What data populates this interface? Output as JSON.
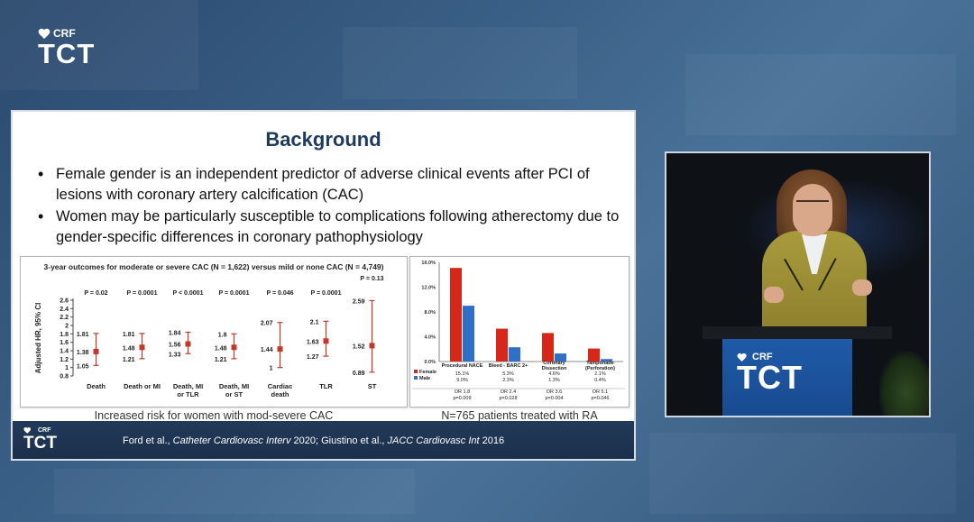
{
  "event_logo": {
    "crf": "CRF",
    "tct": "TCT"
  },
  "slide": {
    "title": "Background",
    "bullets": [
      "Female gender is an independent predictor of adverse clinical events after PCI of lesions with coronary artery calcification (CAC)",
      "Women may be particularly susceptible to complications following atherectomy due to gender-specific differences in coronary pathophysiology"
    ],
    "left_caption": "Increased risk for women with mod-severe CAC",
    "right_caption": "N=765 patients treated with RA",
    "footer": {
      "crf": "CRF",
      "tct": "TCT",
      "cite_a": "Ford et al., ",
      "journal_a": "Catheter Cardiovasc Interv",
      "year_a": " 2020; Giustino et al., ",
      "journal_b": "JACC Cardiovasc Int",
      "year_b": " 2016"
    }
  },
  "chart_data": [
    {
      "type": "scatter",
      "title": "3-year outcomes for moderate or severe CAC (N = 1,622) versus mild or none CAC (N = 4,749)",
      "ylabel": "Adjusted HR, 95% CI",
      "ylim": [
        0.8,
        2.6
      ],
      "yticks": [
        0.8,
        1,
        1.2,
        1.4,
        1.6,
        1.8,
        2,
        2.2,
        2.4,
        2.6
      ],
      "categories": [
        "Death",
        "Death or MI",
        "Death, MI or TLR",
        "Death, MI or ST",
        "Cardiac death",
        "TLR",
        "ST"
      ],
      "category_lines": [
        [
          "Death"
        ],
        [
          "Death or MI"
        ],
        [
          "Death, MI",
          "or TLR"
        ],
        [
          "Death, MI",
          "or ST"
        ],
        [
          "Cardiac",
          "death"
        ],
        [
          "TLR"
        ],
        [
          "ST"
        ]
      ],
      "hr": [
        1.38,
        1.48,
        1.56,
        1.48,
        1.44,
        1.63,
        1.52
      ],
      "ci_low": [
        1.05,
        1.21,
        1.33,
        1.21,
        1,
        1.27,
        0.89
      ],
      "ci_high": [
        1.81,
        1.81,
        1.84,
        1.8,
        2.07,
        2.1,
        2.59
      ],
      "hr_labels": [
        "1.38",
        "1.48",
        "1.56",
        "1.48",
        "1.44",
        "1.63",
        "1.52"
      ],
      "low_labels": [
        "1.05",
        "1.21",
        "1.33",
        "1.21",
        "1",
        "1.27",
        "0.89"
      ],
      "high_labels": [
        "1.81",
        "1.81",
        "1.84",
        "1.8",
        "2.07",
        "2.1",
        "2.59"
      ],
      "p_values": [
        "P = 0.02",
        "P = 0.0001",
        "P < 0.0001",
        "P = 0.0001",
        "P = 0.046",
        "P = 0.0001",
        "P = 0.13"
      ],
      "color": "#c0392b",
      "grid": false
    },
    {
      "type": "bar",
      "categories": [
        "Procedural NACE",
        "Bleed - BARC 2+",
        "Coronary Dissection",
        "Tamponade (Perforation)"
      ],
      "category_lines": [
        [
          "Procedural NACE"
        ],
        [
          "Bleed - BARC 2+"
        ],
        [
          "Coronary",
          "Dissection"
        ],
        [
          "Tamponade",
          "(Perforation)"
        ]
      ],
      "series": [
        {
          "name": "Female",
          "values": [
            15.1,
            5.3,
            4.6,
            2.1
          ],
          "labels": [
            "15.1%",
            "5.3%",
            "4.6%",
            "2.1%"
          ],
          "color": "#d62718"
        },
        {
          "name": "Male",
          "values": [
            9.0,
            2.3,
            1.3,
            0.4
          ],
          "labels": [
            "9.0%",
            "2.3%",
            "1.3%",
            "0.4%"
          ],
          "color": "#2f6fc7"
        }
      ],
      "odds_ratios": [
        "OR 1.8",
        "OR 2.4",
        "OR 3.6",
        "OR 5.1"
      ],
      "p_values": [
        "p=0.009",
        "p=0.028",
        "p=0.004",
        "p=0.046"
      ],
      "ylim": [
        0,
        16
      ],
      "yticks": [
        "0.0%",
        "4.0%",
        "8.0%",
        "12.0%",
        "16.0%"
      ],
      "grid": false
    }
  ],
  "video": {
    "podium_logo": {
      "crf": "CRF",
      "tct": "TCT"
    }
  }
}
